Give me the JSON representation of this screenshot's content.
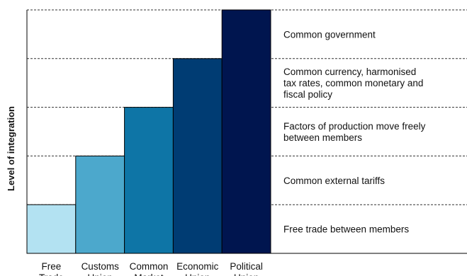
{
  "chart_data": {
    "type": "bar",
    "title": "",
    "xlabel": "",
    "ylabel": "Level of integration",
    "categories": [
      [
        "Free",
        "Trade"
      ],
      [
        "Customs",
        "Union"
      ],
      [
        "Common",
        "Market"
      ],
      [
        "Economic",
        "Union"
      ],
      [
        "Political",
        "Union"
      ]
    ],
    "values": [
      1,
      2,
      3,
      4,
      5
    ],
    "ylim": [
      0,
      5
    ],
    "grid": "dashed horizontal lines at each level",
    "legend": "none",
    "colors": [
      "#b3e2f2",
      "#4ca8cc",
      "#0e75a6",
      "#003c73",
      "#00154f"
    ],
    "level_descriptions": [
      [
        "Free trade between members"
      ],
      [
        "Common external tariffs"
      ],
      [
        "Factors of production move freely",
        "between members"
      ],
      [
        "Common currency, harmonised",
        "tax rates, common monetary and",
        "fiscal policy"
      ],
      [
        "Common government"
      ]
    ]
  }
}
